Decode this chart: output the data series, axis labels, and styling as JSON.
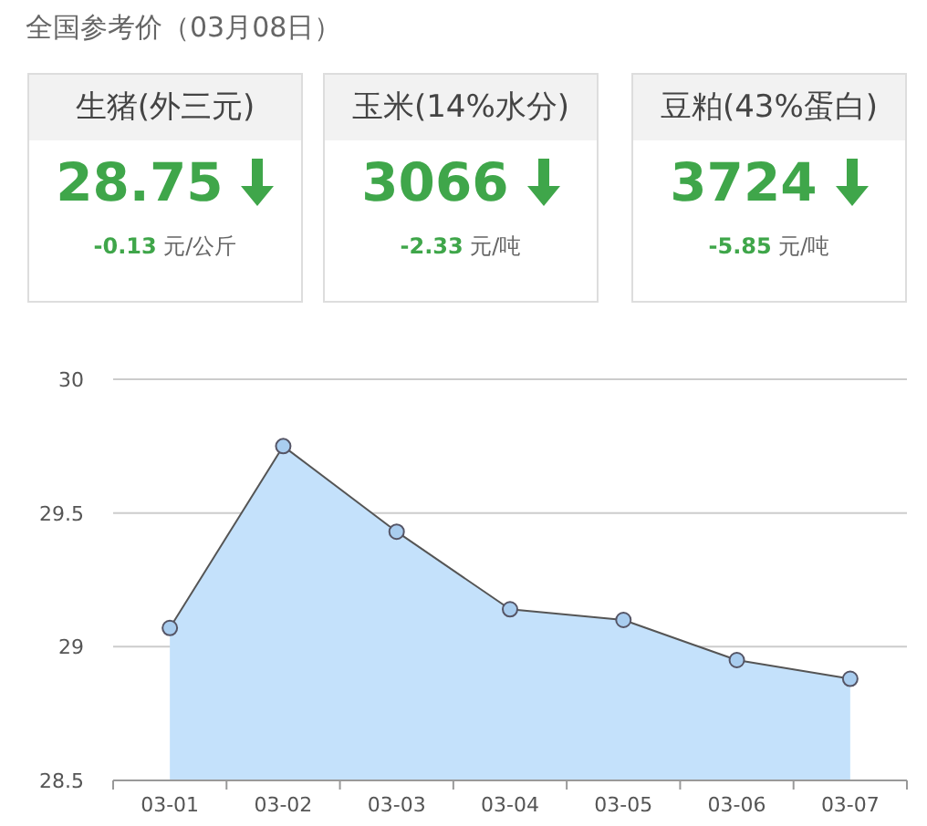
{
  "chart_data": [
    {
      "type": "other",
      "title": "全国参考价（03月08日）",
      "annotations": [
        "生猪(外三元)",
        "28.75",
        "-0.13",
        "元/公斤",
        "玉米(14%水分)",
        "3066",
        "-2.33",
        "元/吨",
        "豆粕(43%蛋白)",
        "3724",
        "-5.85",
        "元/吨"
      ]
    },
    {
      "type": "area",
      "categories": [
        "03-01",
        "03-02",
        "03-03",
        "03-04",
        "03-05",
        "03-06",
        "03-07"
      ],
      "values": [
        29.07,
        29.75,
        29.43,
        29.14,
        29.1,
        28.95,
        28.88
      ],
      "color": "#c4e1fb",
      "ylim": [
        28.5,
        30
      ],
      "yticks": [
        28.5,
        29,
        29.5,
        30
      ],
      "grid": "y",
      "marker": "circle"
    }
  ]
}
